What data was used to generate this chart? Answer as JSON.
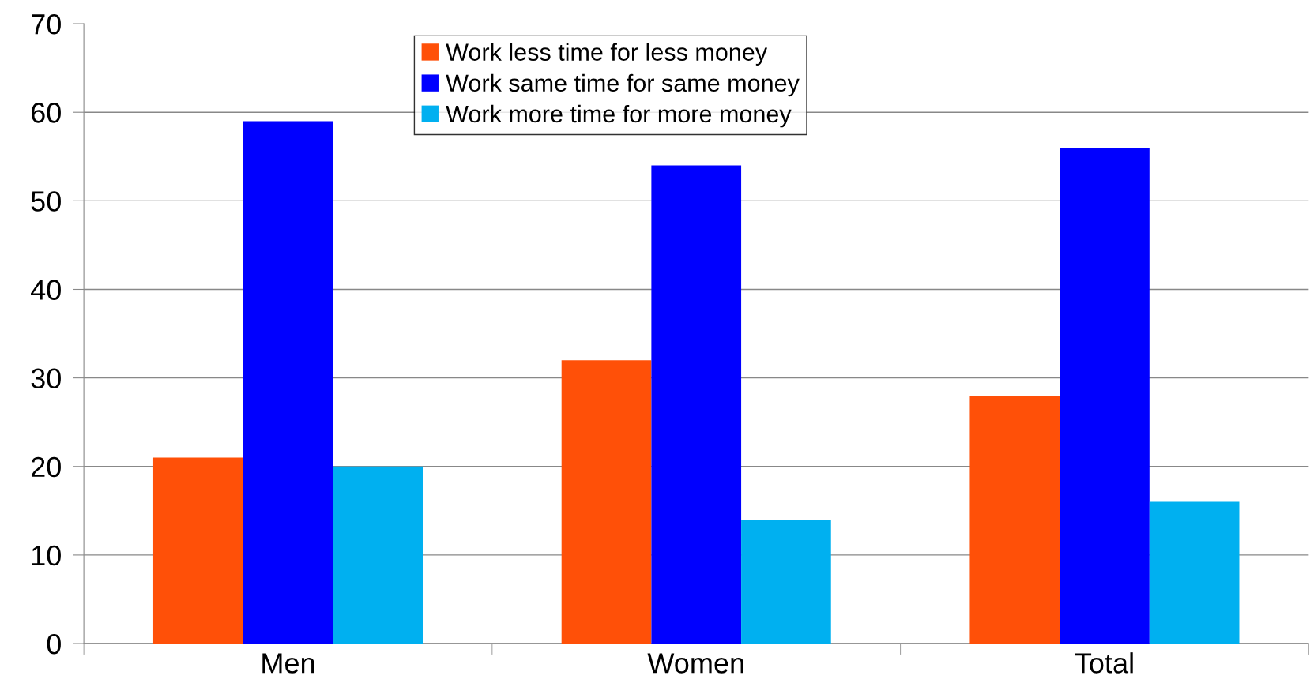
{
  "chart_data": {
    "type": "bar",
    "categories": [
      "Men",
      "Women",
      "Total"
    ],
    "series": [
      {
        "name": "Work less time for less money",
        "color": "#ff5008",
        "values": [
          21,
          32,
          28
        ]
      },
      {
        "name": "Work same time for same money",
        "color": "#0000ff",
        "values": [
          59,
          54,
          56
        ]
      },
      {
        "name": "Work more time for more money",
        "color": "#00b0f0",
        "values": [
          20,
          14,
          16
        ]
      }
    ],
    "ylim": [
      0,
      70
    ],
    "yticks": [
      0,
      10,
      20,
      30,
      40,
      50,
      60,
      70
    ],
    "grid": "y",
    "legend": "top"
  }
}
